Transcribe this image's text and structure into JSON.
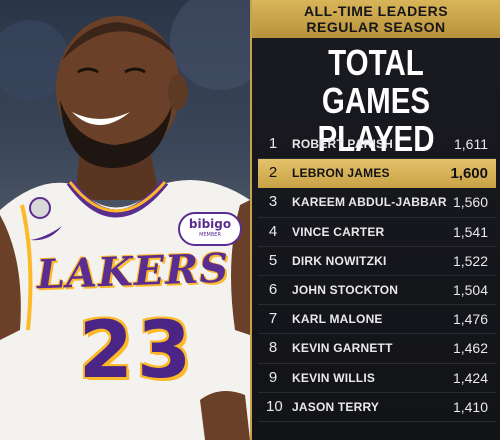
{
  "photo": {
    "jersey_team": "LAKERS",
    "jersey_number": "23",
    "sponsor_name": "bibigo",
    "sponsor_sub": "MEMBER"
  },
  "header": {
    "banner_line1": "ALL-TIME LEADERS",
    "banner_line2": "REGULAR SEASON",
    "title_line1": "TOTAL",
    "title_line2": "GAMES PLAYED"
  },
  "leaders": [
    {
      "rank": "1",
      "name": "ROBERT PARISH",
      "games": "1,611"
    },
    {
      "rank": "2",
      "name": "LEBRON JAMES",
      "games": "1,600",
      "highlight": true
    },
    {
      "rank": "3",
      "name": "KAREEM ABDUL-JABBAR",
      "games": "1,560"
    },
    {
      "rank": "4",
      "name": "VINCE CARTER",
      "games": "1,541"
    },
    {
      "rank": "5",
      "name": "DIRK NOWITZKI",
      "games": "1,522"
    },
    {
      "rank": "6",
      "name": "JOHN STOCKTON",
      "games": "1,504"
    },
    {
      "rank": "7",
      "name": "KARL MALONE",
      "games": "1,476"
    },
    {
      "rank": "8",
      "name": "KEVIN GARNETT",
      "games": "1,462"
    },
    {
      "rank": "9",
      "name": "KEVIN WILLIS",
      "games": "1,424"
    },
    {
      "rank": "10",
      "name": "JASON TERRY",
      "games": "1,410"
    }
  ],
  "colors": {
    "gold": "#d9b55a",
    "lakers_purple": "#5a2d91",
    "lakers_gold": "#fdb927",
    "panel_bg": "#15161b"
  }
}
